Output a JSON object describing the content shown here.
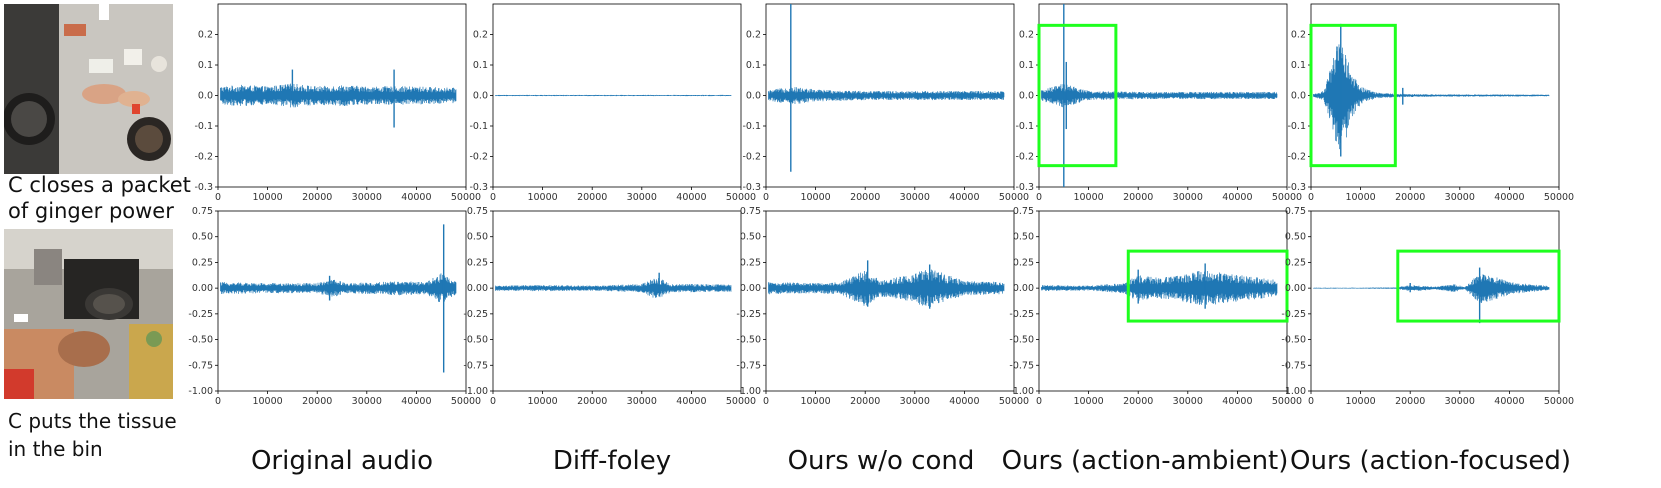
{
  "examples": [
    {
      "caption_lines": [
        "C closes a packet",
        "of ginger power"
      ],
      "thumbnail": "kitchen-overhead-packet"
    },
    {
      "caption_lines": [
        "C puts the tissue",
        "in the bin"
      ],
      "thumbnail": "kitchen-stove-tissue"
    }
  ],
  "column_titles": [
    "Original audio",
    "Diff-foley",
    "Ours w/o cond",
    "Ours (action-ambient)",
    "Ours (action-focused)"
  ],
  "colors": {
    "waveform": "#1f77b4",
    "highlight": "#1eff1e",
    "axis": "#000000"
  },
  "chart_data": [
    {
      "type": "line",
      "row": 0,
      "col": 0,
      "method": "Original audio",
      "xlim": [
        0,
        50000
      ],
      "ylim": [
        -0.3,
        0.3
      ],
      "xticks": [
        "0",
        "10000",
        "20000",
        "30000",
        "40000",
        "50000"
      ],
      "yticks": [
        "0.2",
        "0.1",
        "0.0",
        "-0.1",
        "-0.2",
        "-0.3"
      ],
      "envelope": [
        {
          "x": 0,
          "y": 0.03
        },
        {
          "x": 5000,
          "y": 0.035
        },
        {
          "x": 10000,
          "y": 0.03
        },
        {
          "x": 15000,
          "y": 0.04
        },
        {
          "x": 20000,
          "y": 0.03
        },
        {
          "x": 25000,
          "y": 0.035
        },
        {
          "x": 30000,
          "y": 0.03
        },
        {
          "x": 35000,
          "y": 0.03
        },
        {
          "x": 40000,
          "y": 0.03
        },
        {
          "x": 48000,
          "y": 0.025
        }
      ],
      "spikes": [
        {
          "x": 15000,
          "top": 0.085,
          "bottom": -0.03
        },
        {
          "x": 35500,
          "top": 0.085,
          "bottom": -0.105
        }
      ]
    },
    {
      "type": "line",
      "row": 0,
      "col": 1,
      "method": "Diff-foley",
      "xlim": [
        0,
        50000
      ],
      "ylim": [
        -0.3,
        0.3
      ],
      "xticks": [
        "0",
        "10000",
        "20000",
        "30000",
        "40000",
        "50000"
      ],
      "yticks": [
        "0.2",
        "0.1",
        "0.0",
        "-0.1",
        "-0.2",
        "-0.3"
      ],
      "envelope": [
        {
          "x": 0,
          "y": 0.002
        },
        {
          "x": 48000,
          "y": 0.002
        }
      ],
      "spikes": []
    },
    {
      "type": "line",
      "row": 0,
      "col": 2,
      "method": "Ours w/o cond",
      "xlim": [
        0,
        50000
      ],
      "ylim": [
        -0.3,
        0.3
      ],
      "xticks": [
        "0",
        "10000",
        "20000",
        "30000",
        "40000",
        "50000"
      ],
      "yticks": [
        "0.2",
        "0.1",
        "0.0",
        "-0.1",
        "-0.2",
        "-0.3"
      ],
      "envelope": [
        {
          "x": 0,
          "y": 0.015
        },
        {
          "x": 5000,
          "y": 0.03
        },
        {
          "x": 10000,
          "y": 0.02
        },
        {
          "x": 20000,
          "y": 0.015
        },
        {
          "x": 30000,
          "y": 0.015
        },
        {
          "x": 40000,
          "y": 0.015
        },
        {
          "x": 48000,
          "y": 0.015
        }
      ],
      "spikes": [
        {
          "x": 5000,
          "top": 0.3,
          "bottom": -0.25
        }
      ]
    },
    {
      "type": "line",
      "row": 0,
      "col": 3,
      "method": "Ours (action-ambient)",
      "xlim": [
        0,
        50000
      ],
      "ylim": [
        -0.3,
        0.3
      ],
      "xticks": [
        "0",
        "10000",
        "20000",
        "30000",
        "40000",
        "50000"
      ],
      "yticks": [
        "0.2",
        "0.1",
        "0.0",
        "-0.1",
        "-0.2",
        "-0.3"
      ],
      "envelope": [
        {
          "x": 0,
          "y": 0.015
        },
        {
          "x": 5000,
          "y": 0.04
        },
        {
          "x": 10000,
          "y": 0.015
        },
        {
          "x": 20000,
          "y": 0.012
        },
        {
          "x": 30000,
          "y": 0.012
        },
        {
          "x": 40000,
          "y": 0.012
        },
        {
          "x": 48000,
          "y": 0.012
        }
      ],
      "spikes": [
        {
          "x": 5000,
          "top": 0.3,
          "bottom": -0.3
        },
        {
          "x": 5500,
          "top": 0.11,
          "bottom": -0.11
        }
      ],
      "highlight": {
        "x0": 0,
        "x1": 15500,
        "y0": -0.23,
        "y1": 0.23
      }
    },
    {
      "type": "line",
      "row": 0,
      "col": 4,
      "method": "Ours (action-focused)",
      "xlim": [
        0,
        50000
      ],
      "ylim": [
        -0.3,
        0.3
      ],
      "xticks": [
        "0",
        "10000",
        "20000",
        "30000",
        "40000",
        "50000"
      ],
      "yticks": [
        "0.2",
        "0.1",
        "0.0",
        "-0.1",
        "-0.2",
        "-0.3"
      ],
      "envelope": [
        {
          "x": 0,
          "y": 0.003
        },
        {
          "x": 2500,
          "y": 0.015
        },
        {
          "x": 4000,
          "y": 0.09
        },
        {
          "x": 6000,
          "y": 0.22
        },
        {
          "x": 8000,
          "y": 0.08
        },
        {
          "x": 10000,
          "y": 0.03
        },
        {
          "x": 13000,
          "y": 0.01
        },
        {
          "x": 17000,
          "y": 0.006
        },
        {
          "x": 25000,
          "y": 0.004
        },
        {
          "x": 48000,
          "y": 0.003
        }
      ],
      "spikes": [
        {
          "x": 6000,
          "top": 0.235,
          "bottom": -0.2
        },
        {
          "x": 18500,
          "top": 0.025,
          "bottom": -0.03
        }
      ],
      "highlight": {
        "x0": 0,
        "x1": 17000,
        "y0": -0.23,
        "y1": 0.23
      }
    },
    {
      "type": "line",
      "row": 1,
      "col": 0,
      "method": "Original audio",
      "xlim": [
        0,
        50000
      ],
      "ylim": [
        -1.0,
        0.75
      ],
      "xticks": [
        "0",
        "10000",
        "20000",
        "30000",
        "40000",
        "50000"
      ],
      "yticks": [
        "0.75",
        "0.50",
        "0.25",
        "0.00",
        "-0.25",
        "-0.50",
        "-0.75",
        "-1.00"
      ],
      "envelope": [
        {
          "x": 0,
          "y": 0.06
        },
        {
          "x": 10000,
          "y": 0.05
        },
        {
          "x": 20000,
          "y": 0.05
        },
        {
          "x": 23000,
          "y": 0.09
        },
        {
          "x": 26000,
          "y": 0.05
        },
        {
          "x": 33000,
          "y": 0.06
        },
        {
          "x": 36000,
          "y": 0.07
        },
        {
          "x": 42000,
          "y": 0.06
        },
        {
          "x": 45000,
          "y": 0.15
        },
        {
          "x": 48000,
          "y": 0.06
        }
      ],
      "spikes": [
        {
          "x": 45500,
          "top": 0.62,
          "bottom": -0.82
        },
        {
          "x": 22500,
          "top": 0.12,
          "bottom": -0.12
        }
      ]
    },
    {
      "type": "line",
      "row": 1,
      "col": 1,
      "method": "Diff-foley",
      "xlim": [
        0,
        50000
      ],
      "ylim": [
        -1.0,
        0.75
      ],
      "xticks": [
        "0",
        "10000",
        "20000",
        "30000",
        "40000",
        "50000"
      ],
      "yticks": [
        "0.75",
        "0.50",
        "0.25",
        "0.00",
        "-0.25",
        "-0.50",
        "-0.75",
        "-1.00"
      ],
      "envelope": [
        {
          "x": 0,
          "y": 0.025
        },
        {
          "x": 10000,
          "y": 0.03
        },
        {
          "x": 20000,
          "y": 0.025
        },
        {
          "x": 30000,
          "y": 0.04
        },
        {
          "x": 33000,
          "y": 0.11
        },
        {
          "x": 36000,
          "y": 0.04
        },
        {
          "x": 42000,
          "y": 0.04
        },
        {
          "x": 48000,
          "y": 0.035
        }
      ],
      "spikes": [
        {
          "x": 33500,
          "top": 0.15,
          "bottom": -0.08
        }
      ]
    },
    {
      "type": "line",
      "row": 1,
      "col": 2,
      "method": "Ours w/o cond",
      "xlim": [
        0,
        50000
      ],
      "ylim": [
        -1.0,
        0.75
      ],
      "xticks": [
        "0",
        "10000",
        "20000",
        "30000",
        "40000",
        "50000"
      ],
      "yticks": [
        "0.75",
        "0.50",
        "0.25",
        "0.00",
        "-0.25",
        "-0.50",
        "-0.75",
        "-1.00"
      ],
      "envelope": [
        {
          "x": 0,
          "y": 0.06
        },
        {
          "x": 10000,
          "y": 0.05
        },
        {
          "x": 15000,
          "y": 0.06
        },
        {
          "x": 20000,
          "y": 0.18
        },
        {
          "x": 23000,
          "y": 0.08
        },
        {
          "x": 28000,
          "y": 0.12
        },
        {
          "x": 33000,
          "y": 0.2
        },
        {
          "x": 36000,
          "y": 0.14
        },
        {
          "x": 40000,
          "y": 0.07
        },
        {
          "x": 48000,
          "y": 0.06
        }
      ],
      "spikes": [
        {
          "x": 20500,
          "top": 0.27,
          "bottom": -0.18
        },
        {
          "x": 33000,
          "top": 0.23,
          "bottom": -0.2
        }
      ]
    },
    {
      "type": "line",
      "row": 1,
      "col": 3,
      "method": "Ours (action-ambient)",
      "xlim": [
        0,
        50000
      ],
      "ylim": [
        -1.0,
        0.75
      ],
      "xticks": [
        "0",
        "10000",
        "20000",
        "30000",
        "40000",
        "50000"
      ],
      "yticks": [
        "0.75",
        "0.50",
        "0.25",
        "0.00",
        "-0.25",
        "-0.50",
        "-0.75",
        "-1.00"
      ],
      "envelope": [
        {
          "x": 0,
          "y": 0.03
        },
        {
          "x": 10000,
          "y": 0.025
        },
        {
          "x": 17000,
          "y": 0.05
        },
        {
          "x": 20000,
          "y": 0.13
        },
        {
          "x": 24000,
          "y": 0.1
        },
        {
          "x": 28000,
          "y": 0.12
        },
        {
          "x": 33000,
          "y": 0.18
        },
        {
          "x": 37000,
          "y": 0.15
        },
        {
          "x": 42000,
          "y": 0.12
        },
        {
          "x": 45000,
          "y": 0.1
        },
        {
          "x": 48000,
          "y": 0.08
        }
      ],
      "spikes": [
        {
          "x": 33500,
          "top": 0.24,
          "bottom": -0.2
        },
        {
          "x": 20000,
          "top": 0.18,
          "bottom": -0.15
        }
      ],
      "highlight": {
        "x0": 18000,
        "x1": 50000,
        "y0": -0.32,
        "y1": 0.36
      }
    },
    {
      "type": "line",
      "row": 1,
      "col": 4,
      "method": "Ours (action-focused)",
      "xlim": [
        0,
        50000
      ],
      "ylim": [
        -1.0,
        0.75
      ],
      "xticks": [
        "0",
        "10000",
        "20000",
        "30000",
        "40000",
        "50000"
      ],
      "yticks": [
        "0.75",
        "0.50",
        "0.25",
        "0.00",
        "-0.25",
        "-0.50",
        "-0.75",
        "-1.00"
      ],
      "envelope": [
        {
          "x": 0,
          "y": 0.005
        },
        {
          "x": 10000,
          "y": 0.005
        },
        {
          "x": 17000,
          "y": 0.008
        },
        {
          "x": 20000,
          "y": 0.03
        },
        {
          "x": 25000,
          "y": 0.015
        },
        {
          "x": 29000,
          "y": 0.04
        },
        {
          "x": 31000,
          "y": 0.01
        },
        {
          "x": 34000,
          "y": 0.15
        },
        {
          "x": 37000,
          "y": 0.12
        },
        {
          "x": 40000,
          "y": 0.06
        },
        {
          "x": 44000,
          "y": 0.04
        },
        {
          "x": 48000,
          "y": 0.02
        }
      ],
      "spikes": [
        {
          "x": 34000,
          "top": 0.2,
          "bottom": -0.34
        },
        {
          "x": 20000,
          "top": 0.05,
          "bottom": -0.04
        }
      ],
      "highlight": {
        "x0": 17500,
        "x1": 50000,
        "y0": -0.32,
        "y1": 0.36
      }
    }
  ]
}
